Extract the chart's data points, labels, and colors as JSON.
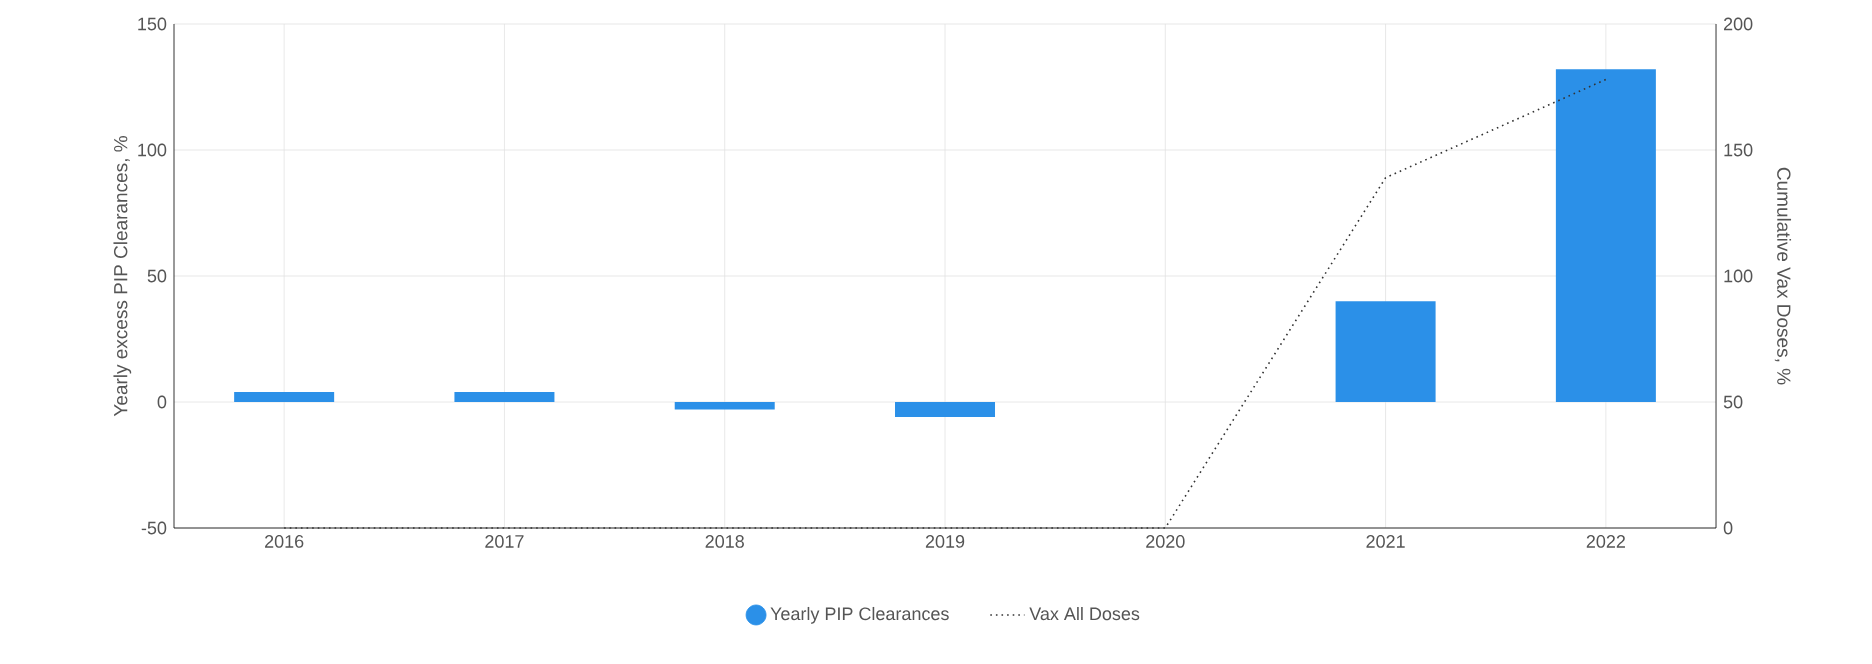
{
  "chart_data": {
    "type": "bar",
    "categories": [
      "2016",
      "2017",
      "2018",
      "2019",
      "2020",
      "2021",
      "2022"
    ],
    "series": [
      {
        "name": "Yearly PIP Clearances",
        "color": "#2b90e8",
        "values": [
          4,
          4,
          -3,
          -6,
          0,
          40,
          132
        ]
      },
      {
        "name": "Vax All Doses",
        "type": "line",
        "axis": "y2",
        "color": "#333333",
        "line_style": "dotted",
        "values": [
          0,
          0,
          0,
          0,
          0,
          139,
          178
        ]
      }
    ],
    "ylabel": "Yearly excess PIP Clearances, %",
    "y2label": "Cumulative Vax Doses, %",
    "ylim": [
      -50,
      150
    ],
    "yticks": [
      -50,
      0,
      50,
      100,
      150
    ],
    "y2lim": [
      0,
      200
    ],
    "y2ticks": [
      0,
      50,
      100,
      150,
      200
    ],
    "grid": true,
    "legend": "bottom",
    "marker": "none"
  }
}
